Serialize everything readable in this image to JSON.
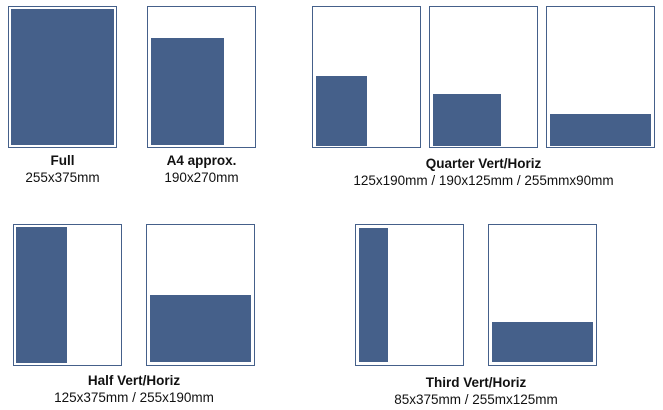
{
  "fill_color": "#45608a",
  "groups": [
    {
      "title": "Full",
      "sizes": "255x375mm"
    },
    {
      "title": "A4 approx.",
      "sizes": "190x270mm"
    },
    {
      "title": "Quarter Vert/Horiz",
      "sizes": "125x190mm / 190x125mm / 255mmx90mm"
    },
    {
      "title": "Half Vert/Horiz",
      "sizes": "125x375mm / 255x190mm"
    },
    {
      "title": "Third Vert/Horiz",
      "sizes": "85x375mm / 255mx125mm"
    }
  ]
}
